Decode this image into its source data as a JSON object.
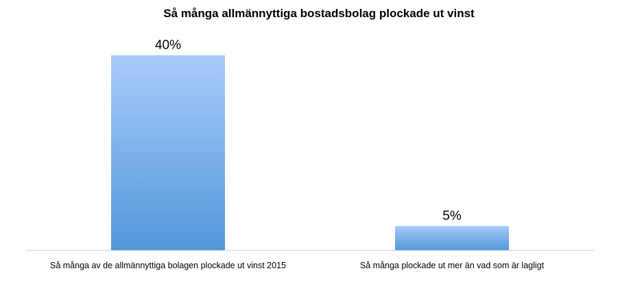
{
  "chart_data": {
    "type": "bar",
    "title": "Så många allmännyttiga bostadsbolag plockade ut vinst",
    "xlabel": "",
    "ylabel": "",
    "categories": [
      "Så många av de allmännyttiga bolagen plockade ut vinst 2015",
      "Så många plockade ut mer än vad som är lagligt"
    ],
    "values": [
      40,
      5
    ],
    "data_labels": [
      "40%",
      "5%"
    ],
    "unit": "%",
    "ylim": [
      0,
      45
    ],
    "grid": false,
    "legend": "none",
    "colors": {
      "bar_top": "#a9cbfb",
      "bar_bottom": "#5197da",
      "axis": "#c8c8c8"
    }
  }
}
